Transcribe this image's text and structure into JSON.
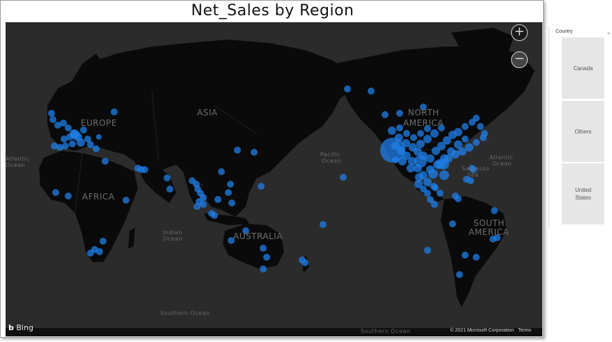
{
  "visual": {
    "title": "Net_Sales by Region"
  },
  "map": {
    "continent_labels": {
      "asia": "ASIA",
      "europe": "EUROPE",
      "africa": "AFRICA",
      "north_america_1": "NORTH",
      "north_america_2": "AMERICA",
      "south_america_1": "SOUTH",
      "south_america_2": "AMERICA",
      "australia": "AUSTRALIA"
    },
    "ocean_labels": {
      "pacific_1": "Pacific",
      "pacific_2": "Ocean",
      "atlantic_east_1": "Atlantic",
      "atlantic_east_2": "Ocean",
      "atlantic_west_1": "Atlantic",
      "atlantic_west_2": "Ocean",
      "sargasso_1": "Sargasso",
      "sargasso_2": "Sea",
      "indian_1": "Indian",
      "indian_2": "Ocean",
      "southern": "Southern Ocean",
      "southern_2": "Southern Ocean"
    },
    "zoom_in_label": "+",
    "zoom_out_label": "−",
    "provider": "Bing",
    "copyright": "© 2021 Microsoft Corporation",
    "terms": "Terms",
    "bubble_color": "#1f7fe8"
  },
  "slicer": {
    "header": "Country",
    "chevron": "⌄",
    "options": [
      "Canada",
      "Others",
      "United\nStates"
    ]
  }
}
